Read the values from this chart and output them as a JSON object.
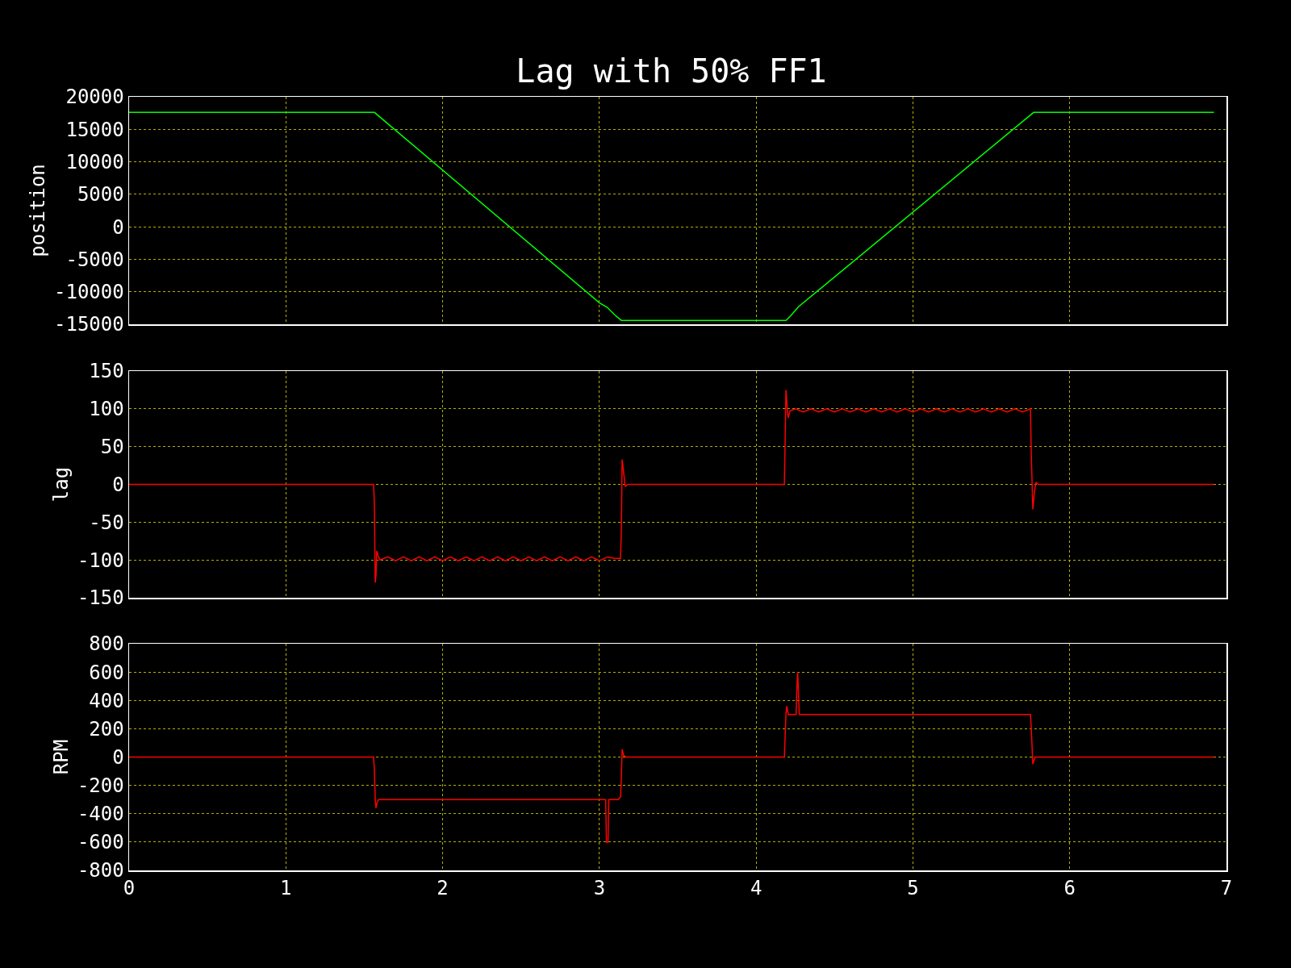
{
  "chart_data": [
    {
      "type": "line",
      "title": "Lag with 50% FF1",
      "ylabel": "position",
      "xlim": [
        0,
        7
      ],
      "xticks": [
        0,
        1,
        2,
        3,
        4,
        5,
        6,
        7
      ],
      "ylim": [
        -15000,
        20000
      ],
      "yticks": [
        -15000,
        -10000,
        -5000,
        0,
        5000,
        10000,
        15000,
        20000
      ],
      "grid": true,
      "tick_labels": "y",
      "series": [
        {
          "color": "#00ff00",
          "x": [
            0,
            1.565,
            3.0,
            3.05,
            3.1,
            3.14,
            4.19,
            4.22,
            4.27,
            5.77,
            6.92
          ],
          "values": [
            17600,
            17600,
            -11700,
            -12400,
            -13600,
            -14400,
            -14400,
            -13700,
            -12300,
            17600,
            17600
          ]
        }
      ]
    },
    {
      "type": "line",
      "ylabel": "lag",
      "xlim": [
        0,
        7
      ],
      "xticks": [
        0,
        1,
        2,
        3,
        4,
        5,
        6,
        7
      ],
      "ylim": [
        -150,
        150
      ],
      "yticks": [
        -150,
        -100,
        -50,
        0,
        50,
        100,
        150
      ],
      "grid": true,
      "tick_labels": "y",
      "series": [
        {
          "color": "#ff0000",
          "x": [
            0,
            1.56,
            1.565,
            1.57,
            1.575,
            1.58,
            1.59,
            1.6,
            1.65,
            1.7,
            1.75,
            1.8,
            1.85,
            1.9,
            1.95,
            2.0,
            2.05,
            2.1,
            2.15,
            2.2,
            2.25,
            2.3,
            2.35,
            2.4,
            2.45,
            2.5,
            2.55,
            2.6,
            2.65,
            2.7,
            2.75,
            2.8,
            2.85,
            2.9,
            2.95,
            3.0,
            3.05,
            3.1,
            3.135,
            3.14,
            3.145,
            3.155,
            3.165,
            3.18,
            4.18,
            4.185,
            4.19,
            4.2,
            4.205,
            4.215,
            4.25,
            4.3,
            4.35,
            4.4,
            4.45,
            4.5,
            4.55,
            4.6,
            4.65,
            4.7,
            4.75,
            4.8,
            4.85,
            4.9,
            4.95,
            5.0,
            5.05,
            5.1,
            5.15,
            5.2,
            5.25,
            5.3,
            5.35,
            5.4,
            5.45,
            5.5,
            5.55,
            5.6,
            5.65,
            5.7,
            5.75,
            5.755,
            5.765,
            5.775,
            5.785,
            5.8,
            6.92
          ],
          "values": [
            0,
            0,
            -30,
            -130,
            -120,
            -88,
            -95,
            -100,
            -96,
            -101,
            -96,
            -101,
            -96,
            -101,
            -96,
            -101,
            -96,
            -101,
            -96,
            -101,
            -96,
            -101,
            -96,
            -101,
            -96,
            -101,
            -96,
            -101,
            -96,
            -101,
            -96,
            -101,
            -96,
            -101,
            -96,
            -101,
            -96,
            -98,
            -98,
            -60,
            33,
            15,
            -3,
            0,
            0,
            60,
            125,
            95,
            88,
            97,
            100,
            96,
            100,
            96,
            100,
            96,
            100,
            96,
            100,
            96,
            100,
            96,
            100,
            96,
            100,
            96,
            100,
            96,
            100,
            96,
            100,
            96,
            100,
            96,
            100,
            96,
            100,
            96,
            100,
            96,
            100,
            40,
            -33,
            -10,
            3,
            0,
            0
          ]
        }
      ]
    },
    {
      "type": "line",
      "ylabel": "RPM",
      "xlim": [
        0,
        7
      ],
      "xticks": [
        0,
        1,
        2,
        3,
        4,
        5,
        6,
        7
      ],
      "ylim": [
        -800,
        800
      ],
      "yticks": [
        -800,
        -600,
        -400,
        -200,
        0,
        200,
        400,
        600,
        800
      ],
      "grid": true,
      "series": [
        {
          "color": "#ff0000",
          "x": [
            0,
            1.56,
            1.565,
            1.57,
            1.575,
            1.58,
            1.59,
            3.04,
            3.045,
            3.055,
            3.06,
            3.12,
            3.135,
            3.14,
            3.145,
            3.155,
            3.17,
            4.18,
            4.185,
            4.19,
            4.195,
            4.205,
            4.22,
            4.255,
            4.26,
            4.265,
            4.275,
            5.75,
            5.755,
            5.765,
            5.78,
            6.92
          ],
          "values": [
            0,
            0,
            -100,
            -300,
            -360,
            -330,
            -300,
            -300,
            -600,
            -600,
            -300,
            -300,
            -280,
            -150,
            55,
            10,
            0,
            0,
            150,
            300,
            360,
            300,
            300,
            300,
            500,
            600,
            300,
            300,
            200,
            -50,
            0,
            0
          ]
        }
      ]
    }
  ]
}
